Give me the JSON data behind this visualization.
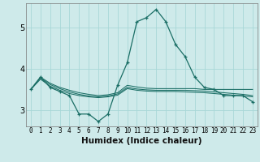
{
  "xlabel": "Humidex (Indice chaleur)",
  "background_color": "#ceeaea",
  "grid_color": "#a8d8d8",
  "line_color": "#1a6e65",
  "x": [
    0,
    1,
    2,
    3,
    4,
    5,
    6,
    7,
    8,
    9,
    10,
    11,
    12,
    13,
    14,
    15,
    16,
    17,
    18,
    19,
    20,
    21,
    22,
    23
  ],
  "line_main": [
    3.5,
    3.8,
    3.55,
    3.45,
    3.35,
    2.9,
    2.9,
    2.72,
    2.9,
    3.6,
    4.15,
    5.15,
    5.25,
    5.45,
    5.15,
    4.6,
    4.3,
    3.8,
    3.55,
    3.5,
    3.35,
    3.35,
    3.35,
    3.2
  ],
  "line_upper": [
    3.5,
    3.8,
    3.65,
    3.55,
    3.48,
    3.42,
    3.38,
    3.35,
    3.37,
    3.42,
    3.6,
    3.56,
    3.53,
    3.52,
    3.52,
    3.52,
    3.52,
    3.52,
    3.5,
    3.5,
    3.5,
    3.5,
    3.5,
    3.5
  ],
  "line_mid": [
    3.5,
    3.75,
    3.58,
    3.48,
    3.4,
    3.35,
    3.32,
    3.3,
    3.32,
    3.36,
    3.52,
    3.48,
    3.46,
    3.45,
    3.45,
    3.45,
    3.44,
    3.43,
    3.42,
    3.4,
    3.38,
    3.36,
    3.34,
    3.32
  ],
  "line_lower": [
    3.5,
    3.78,
    3.62,
    3.52,
    3.44,
    3.38,
    3.34,
    3.32,
    3.34,
    3.39,
    3.55,
    3.51,
    3.49,
    3.48,
    3.48,
    3.48,
    3.48,
    3.47,
    3.46,
    3.44,
    3.42,
    3.4,
    3.38,
    3.35
  ],
  "ylim": [
    2.6,
    5.6
  ],
  "yticks": [
    3,
    4,
    5
  ],
  "xlim": [
    -0.5,
    23.5
  ]
}
